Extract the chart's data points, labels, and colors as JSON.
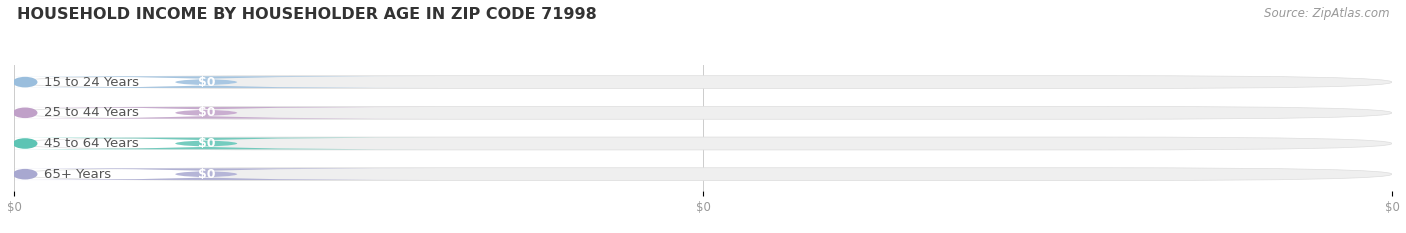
{
  "title": "HOUSEHOLD INCOME BY HOUSEHOLDER AGE IN ZIP CODE 71998",
  "source": "Source: ZipAtlas.com",
  "categories": [
    "15 to 24 Years",
    "25 to 44 Years",
    "45 to 64 Years",
    "65+ Years"
  ],
  "values": [
    0,
    0,
    0,
    0
  ],
  "bar_colors": [
    "#9abedd",
    "#c0a0c8",
    "#5dc4b4",
    "#a8a8d0"
  ],
  "background_color": "#ffffff",
  "bar_bg_color": "#efefef",
  "title_fontsize": 11.5,
  "source_fontsize": 8.5,
  "label_fontsize": 9.5,
  "value_fontsize": 9,
  "tick_fontsize": 8.5,
  "xtick_labels": [
    "$0",
    "$0",
    "$0"
  ],
  "xtick_positions": [
    0.0,
    0.5,
    1.0
  ]
}
